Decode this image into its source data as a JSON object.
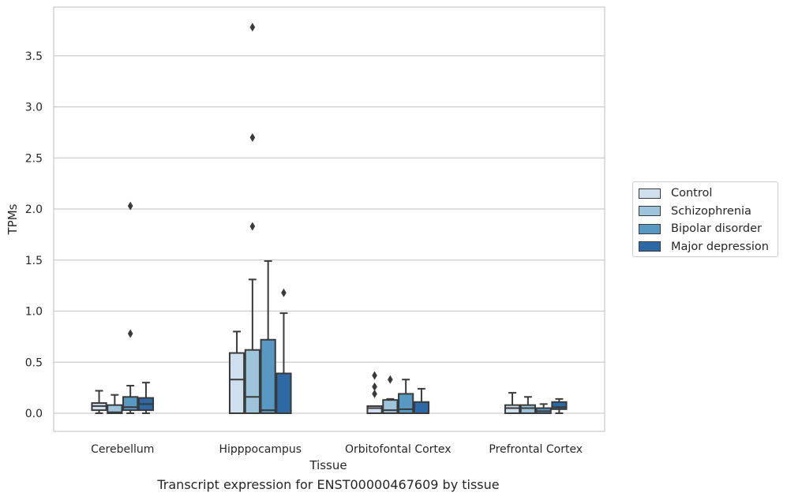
{
  "chart_data": {
    "type": "box",
    "xlabel": "Tissue",
    "ylabel": "TPMs",
    "caption": "Transcript expression for ENST00000467609 by tissue",
    "categories": [
      "Cerebellum",
      "Hipppocampus",
      "Orbitofontal Cortex",
      "Prefrontal Cortex"
    ],
    "ylim": [
      -0.18,
      3.95
    ],
    "yticks": [
      0.0,
      0.5,
      1.0,
      1.5,
      2.0,
      2.5,
      3.0,
      3.5
    ],
    "ytick_labels": [
      "0.0",
      "0.5",
      "1.0",
      "1.5",
      "2.0",
      "2.5",
      "3.0",
      "3.5"
    ],
    "grid": "horizontal",
    "legend_position": "right",
    "series": [
      {
        "name": "Control",
        "color": "#d0dfee",
        "boxes": [
          {
            "whislo": 0.0,
            "q1": 0.03,
            "med": 0.07,
            "q3": 0.1,
            "whishi": 0.22,
            "fliers": []
          },
          {
            "whislo": 0.0,
            "q1": 0.0,
            "med": 0.33,
            "q3": 0.59,
            "whishi": 0.8,
            "fliers": []
          },
          {
            "whislo": 0.0,
            "q1": 0.0,
            "med": 0.05,
            "q3": 0.07,
            "whishi": 0.07,
            "fliers": [
              0.19,
              0.26,
              0.37
            ]
          },
          {
            "whislo": 0.0,
            "q1": 0.0,
            "med": 0.05,
            "q3": 0.08,
            "whishi": 0.2,
            "fliers": []
          }
        ]
      },
      {
        "name": "Schizophrenia",
        "color": "#9dc4db",
        "boxes": [
          {
            "whislo": 0.0,
            "q1": 0.0,
            "med": 0.01,
            "q3": 0.08,
            "whishi": 0.18,
            "fliers": []
          },
          {
            "whislo": 0.0,
            "q1": 0.0,
            "med": 0.16,
            "q3": 0.62,
            "whishi": 1.31,
            "fliers": [
              1.83,
              2.7,
              3.78
            ]
          },
          {
            "whislo": 0.0,
            "q1": 0.0,
            "med": 0.03,
            "q3": 0.13,
            "whishi": 0.14,
            "fliers": [
              0.33
            ]
          },
          {
            "whislo": 0.0,
            "q1": 0.0,
            "med": 0.05,
            "q3": 0.08,
            "whishi": 0.16,
            "fliers": []
          }
        ]
      },
      {
        "name": "Bipolar disorder",
        "color": "#5899c4",
        "boxes": [
          {
            "whislo": 0.0,
            "q1": 0.03,
            "med": 0.06,
            "q3": 0.16,
            "whishi": 0.27,
            "fliers": [
              0.78,
              2.03
            ]
          },
          {
            "whislo": 0.0,
            "q1": 0.0,
            "med": 0.03,
            "q3": 0.72,
            "whishi": 1.49,
            "fliers": []
          },
          {
            "whislo": 0.0,
            "q1": 0.0,
            "med": 0.04,
            "q3": 0.19,
            "whishi": 0.33,
            "fliers": []
          },
          {
            "whislo": 0.0,
            "q1": 0.0,
            "med": 0.02,
            "q3": 0.05,
            "whishi": 0.09,
            "fliers": []
          }
        ]
      },
      {
        "name": "Major depression",
        "color": "#2d69a5",
        "boxes": [
          {
            "whislo": 0.0,
            "q1": 0.03,
            "med": 0.09,
            "q3": 0.15,
            "whishi": 0.3,
            "fliers": []
          },
          {
            "whislo": 0.0,
            "q1": 0.0,
            "med": 0.0,
            "q3": 0.39,
            "whishi": 0.98,
            "fliers": [
              1.18
            ]
          },
          {
            "whislo": 0.0,
            "q1": 0.0,
            "med": 0.0,
            "q3": 0.11,
            "whishi": 0.24,
            "fliers": []
          },
          {
            "whislo": 0.0,
            "q1": 0.04,
            "med": 0.06,
            "q3": 0.11,
            "whishi": 0.14,
            "fliers": []
          }
        ]
      }
    ]
  }
}
